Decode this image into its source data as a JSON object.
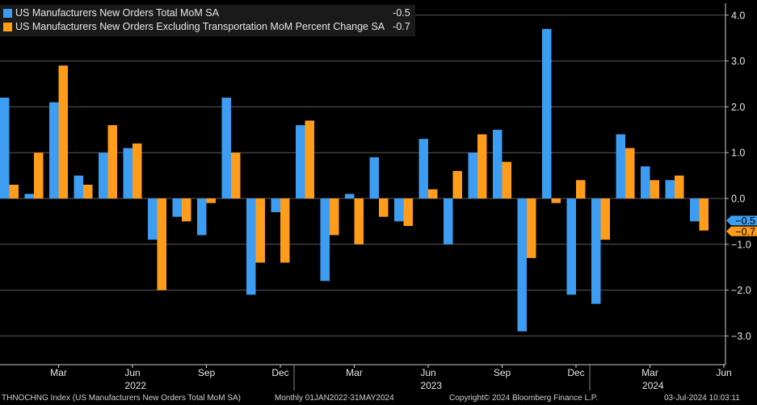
{
  "chart_data": {
    "type": "bar",
    "title": "",
    "ylim": [
      -3.5,
      4.2
    ],
    "yticks": [
      4.0,
      3.0,
      2.0,
      1.0,
      0.0,
      -1.0,
      -2.0,
      -3.0
    ],
    "ytick_labels": [
      "4.0",
      "3.0",
      "2.0",
      "1.0",
      "0.0",
      "-1.0",
      "-2.0",
      "-3.0"
    ],
    "month_labels": [
      "Mar",
      "Jun",
      "Sep",
      "Dec",
      "Mar",
      "Jun",
      "Sep",
      "Dec",
      "Mar",
      "Jun"
    ],
    "month_label_positions": [
      2,
      5,
      8,
      11,
      14,
      17,
      20,
      23,
      26,
      29
    ],
    "year_labels": [
      "2022",
      "2023",
      "2024"
    ],
    "year_label_positions": [
      5.5,
      17.5,
      26.5
    ],
    "categories": [
      "Jan 2022",
      "Feb 2022",
      "Mar 2022",
      "Apr 2022",
      "May 2022",
      "Jun 2022",
      "Jul 2022",
      "Aug 2022",
      "Sep 2022",
      "Oct 2022",
      "Nov 2022",
      "Dec 2022",
      "Jan 2023",
      "Feb 2023",
      "Mar 2023",
      "Apr 2023",
      "May 2023",
      "Jun 2023",
      "Jul 2023",
      "Aug 2023",
      "Sep 2023",
      "Oct 2023",
      "Nov 2023",
      "Dec 2023",
      "Jan 2024",
      "Feb 2024",
      "Mar 2024",
      "Apr 2024",
      "May 2024"
    ],
    "series": [
      {
        "name": "US Manufacturers New Orders Total MoM SA",
        "last_value": "-0.5",
        "color": "#3d9df2",
        "values": [
          2.2,
          0.1,
          2.1,
          0.5,
          1.0,
          1.1,
          -0.9,
          -0.4,
          -0.8,
          2.2,
          -2.1,
          -0.3,
          1.6,
          -1.8,
          0.1,
          0.9,
          -0.5,
          1.3,
          -1.0,
          1.0,
          1.5,
          -2.9,
          3.7,
          -2.1,
          -2.3,
          1.4,
          0.7,
          0.4,
          -0.5
        ]
      },
      {
        "name": "US Manufacturers New Orders Excluding Transportation MoM Percent Change SA",
        "last_value": "-0.7",
        "color": "#ff9c1a",
        "values": [
          0.3,
          1.0,
          2.9,
          0.3,
          1.6,
          1.2,
          -2.0,
          -0.5,
          -0.1,
          1.0,
          -1.4,
          -1.4,
          1.7,
          -0.8,
          -1.0,
          -0.4,
          -0.6,
          0.2,
          0.6,
          1.4,
          0.8,
          -1.3,
          -0.1,
          0.4,
          -0.9,
          1.1,
          0.4,
          0.5,
          -0.7
        ]
      }
    ]
  },
  "footer": {
    "ticker": "THNOCHNG Index (US Manufacturers New Orders Total MoM SA)",
    "range": "Monthly 01JAN2022-31MAY2024",
    "copyright": "Copyright© 2024 Bloomberg Finance L.P.",
    "timestamp": "03-Jul-2024 10:03:11"
  }
}
